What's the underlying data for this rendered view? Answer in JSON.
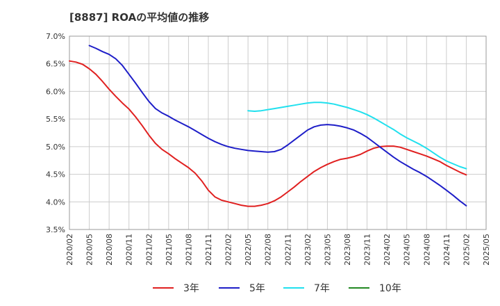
{
  "chart_data": {
    "type": "line",
    "title": "[8887]  ROAの平均値の推移",
    "xlabel": "",
    "ylabel": "",
    "ylim": [
      3.5,
      7.0
    ],
    "yticks": [
      "3.5%",
      "4.0%",
      "4.5%",
      "5.0%",
      "5.5%",
      "6.0%",
      "6.5%",
      "7.0%"
    ],
    "grid": true,
    "legend": "bottom",
    "categories": [
      "2020/02",
      "2020/05",
      "2020/08",
      "2020/11",
      "2021/02",
      "2021/05",
      "2021/08",
      "2021/11",
      "2022/02",
      "2022/05",
      "2022/08",
      "2022/11",
      "2023/02",
      "2023/05",
      "2023/08",
      "2023/11",
      "2024/02",
      "2024/05",
      "2024/08",
      "2024/11",
      "2025/02",
      "2025/05"
    ],
    "series": [
      {
        "name": "3年",
        "color": "#e02020",
        "x": [
          "2020/02",
          "2020/03",
          "2020/04",
          "2020/05",
          "2020/06",
          "2020/07",
          "2020/08",
          "2020/09",
          "2020/10",
          "2020/11",
          "2020/12",
          "2021/01",
          "2021/02",
          "2021/03",
          "2021/04",
          "2021/05",
          "2021/06",
          "2021/07",
          "2021/08",
          "2021/09",
          "2021/10",
          "2021/11",
          "2021/12",
          "2022/01",
          "2022/02",
          "2022/03",
          "2022/04",
          "2022/05",
          "2022/06",
          "2022/07",
          "2022/08",
          "2022/09",
          "2022/10",
          "2022/11",
          "2022/12",
          "2023/01",
          "2023/02",
          "2023/03",
          "2023/04",
          "2023/05",
          "2023/06",
          "2023/07",
          "2023/08",
          "2023/09",
          "2023/10",
          "2023/11",
          "2023/12",
          "2024/01",
          "2024/02",
          "2024/03",
          "2024/04",
          "2024/05",
          "2024/06",
          "2024/07",
          "2024/08",
          "2024/09",
          "2024/10",
          "2024/11",
          "2024/12",
          "2025/01",
          "2025/02"
        ],
        "values": [
          6.55,
          6.53,
          6.49,
          6.41,
          6.31,
          6.18,
          6.04,
          5.91,
          5.79,
          5.68,
          5.54,
          5.38,
          5.21,
          5.06,
          4.95,
          4.87,
          4.78,
          4.7,
          4.62,
          4.52,
          4.38,
          4.21,
          4.09,
          4.03,
          4.0,
          3.97,
          3.94,
          3.92,
          3.92,
          3.94,
          3.97,
          4.02,
          4.09,
          4.18,
          4.27,
          4.37,
          4.46,
          4.55,
          4.62,
          4.68,
          4.73,
          4.77,
          4.79,
          4.82,
          4.86,
          4.92,
          4.97,
          5.0,
          5.01,
          5.01,
          4.99,
          4.95,
          4.91,
          4.87,
          4.83,
          4.78,
          4.73,
          4.66,
          4.6,
          4.54,
          4.49
        ]
      },
      {
        "name": "5年",
        "color": "#1e1ec8",
        "x": [
          "2020/05",
          "2020/06",
          "2020/07",
          "2020/08",
          "2020/09",
          "2020/10",
          "2020/11",
          "2020/12",
          "2021/01",
          "2021/02",
          "2021/03",
          "2021/04",
          "2021/05",
          "2021/06",
          "2021/07",
          "2021/08",
          "2021/09",
          "2021/10",
          "2021/11",
          "2021/12",
          "2022/01",
          "2022/02",
          "2022/03",
          "2022/04",
          "2022/05",
          "2022/06",
          "2022/07",
          "2022/08",
          "2022/09",
          "2022/10",
          "2022/11",
          "2022/12",
          "2023/01",
          "2023/02",
          "2023/03",
          "2023/04",
          "2023/05",
          "2023/06",
          "2023/07",
          "2023/08",
          "2023/09",
          "2023/10",
          "2023/11",
          "2023/12",
          "2024/01",
          "2024/02",
          "2024/03",
          "2024/04",
          "2024/05",
          "2024/06",
          "2024/07",
          "2024/08",
          "2024/09",
          "2024/10",
          "2024/11",
          "2024/12",
          "2025/01",
          "2025/02"
        ],
        "values": [
          6.83,
          6.78,
          6.72,
          6.67,
          6.59,
          6.47,
          6.31,
          6.15,
          5.98,
          5.82,
          5.69,
          5.61,
          5.55,
          5.48,
          5.42,
          5.36,
          5.29,
          5.22,
          5.15,
          5.09,
          5.04,
          5.0,
          4.97,
          4.95,
          4.93,
          4.92,
          4.91,
          4.9,
          4.91,
          4.95,
          5.03,
          5.12,
          5.21,
          5.3,
          5.36,
          5.39,
          5.4,
          5.39,
          5.37,
          5.34,
          5.3,
          5.24,
          5.17,
          5.08,
          4.99,
          4.9,
          4.81,
          4.73,
          4.66,
          4.59,
          4.53,
          4.46,
          4.38,
          4.3,
          4.21,
          4.12,
          4.02,
          3.93
        ]
      },
      {
        "name": "7年",
        "color": "#20e0ee",
        "x": [
          "2022/05",
          "2022/06",
          "2022/07",
          "2022/08",
          "2022/09",
          "2022/10",
          "2022/11",
          "2022/12",
          "2023/01",
          "2023/02",
          "2023/03",
          "2023/04",
          "2023/05",
          "2023/06",
          "2023/07",
          "2023/08",
          "2023/09",
          "2023/10",
          "2023/11",
          "2023/12",
          "2024/01",
          "2024/02",
          "2024/03",
          "2024/04",
          "2024/05",
          "2024/06",
          "2024/07",
          "2024/08",
          "2024/09",
          "2024/10",
          "2024/11",
          "2024/12",
          "2025/01",
          "2025/02"
        ],
        "values": [
          5.65,
          5.64,
          5.65,
          5.67,
          5.69,
          5.71,
          5.73,
          5.75,
          5.77,
          5.79,
          5.8,
          5.8,
          5.79,
          5.77,
          5.74,
          5.71,
          5.67,
          5.63,
          5.58,
          5.52,
          5.45,
          5.38,
          5.31,
          5.23,
          5.16,
          5.1,
          5.04,
          4.97,
          4.89,
          4.81,
          4.74,
          4.69,
          4.64,
          4.6
        ]
      },
      {
        "name": "10年",
        "color": "#228822",
        "x": [],
        "values": []
      }
    ]
  }
}
